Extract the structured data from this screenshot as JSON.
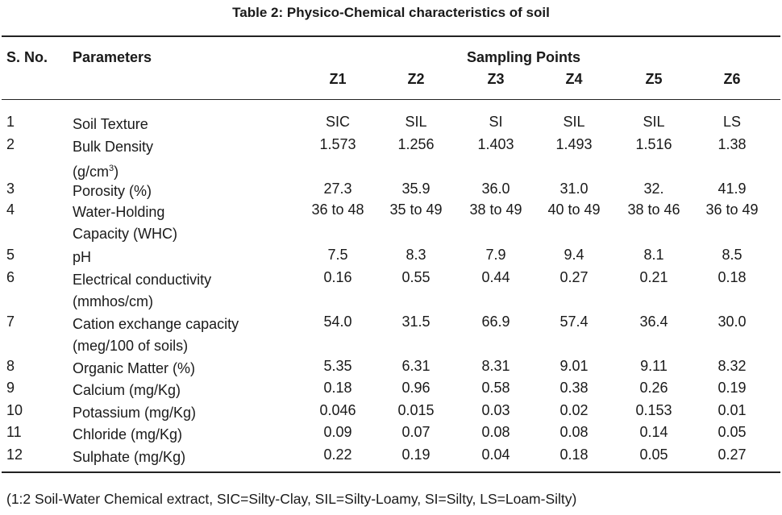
{
  "title": "Table 2: Physico-Chemical characteristics of soil",
  "headers": {
    "sno": "S. No.",
    "parameters": "Parameters",
    "sampling_points": "Sampling Points",
    "zones": [
      "Z1",
      "Z2",
      "Z3",
      "Z4",
      "Z5",
      "Z6"
    ]
  },
  "rows": [
    {
      "sno": "1",
      "param": "Soil Texture",
      "values": [
        "SIC",
        "SIL",
        "SI",
        "SIL",
        "SIL",
        "LS"
      ]
    },
    {
      "sno": "2",
      "param": "Bulk Density",
      "param2": "(g/cm",
      "param2_sup": "3",
      "param2_end": ")",
      "values": [
        "1.573",
        "1.256",
        "1.403",
        "1.493",
        "1.516",
        "1.38"
      ]
    },
    {
      "sno": "3",
      "param": "Porosity (%)",
      "values": [
        "27.3",
        "35.9",
        "36.0",
        "31.0",
        "32.",
        "41.9"
      ]
    },
    {
      "sno": "4",
      "param": "Water-Holding",
      "param2": "Capacity (WHC)",
      "values": [
        "36 to 48",
        "35 to 49",
        "38 to 49",
        "40 to 49",
        "38 to 46",
        "36 to 49"
      ]
    },
    {
      "sno": "5",
      "param": "pH",
      "values": [
        "7.5",
        "8.3",
        "7.9",
        "9.4",
        "8.1",
        "8.5"
      ]
    },
    {
      "sno": "6",
      "param": "Electrical conductivity",
      "param2": "(mmhos/cm)",
      "values": [
        "0.16",
        "0.55",
        "0.44",
        "0.27",
        "0.21",
        "0.18"
      ]
    },
    {
      "sno": "7",
      "param": "Cation exchange capacity",
      "param2": "(meg/100 of soils)",
      "values": [
        "54.0",
        "31.5",
        "66.9",
        "57.4",
        "36.4",
        "30.0"
      ]
    },
    {
      "sno": "8",
      "param": "Organic Matter (%)",
      "values": [
        "5.35",
        "6.31",
        "8.31",
        "9.01",
        "9.11",
        "8.32"
      ]
    },
    {
      "sno": "9",
      "param": "Calcium (mg/Kg)",
      "values": [
        "0.18",
        "0.96",
        "0.58",
        "0.38",
        "0.26",
        "0.19"
      ]
    },
    {
      "sno": "10",
      "param": "Potassium (mg/Kg)",
      "values": [
        "0.046",
        "0.015",
        "0.03",
        "0.02",
        "0.153",
        "0.01"
      ]
    },
    {
      "sno": "11",
      "param": "Chloride (mg/Kg)",
      "values": [
        "0.09",
        "0.07",
        "0.08",
        "0.08",
        "0.14",
        "0.05"
      ]
    },
    {
      "sno": "12",
      "param": "Sulphate (mg/Kg)",
      "values": [
        "0.22",
        "0.19",
        "0.04",
        "0.18",
        "0.05",
        "0.27"
      ]
    }
  ],
  "footnote": "(1:2 Soil-Water Chemical extract, SIC=Silty-Clay, SIL=Silty-Loamy, SI=Silty, LS=Loam-Silty)"
}
